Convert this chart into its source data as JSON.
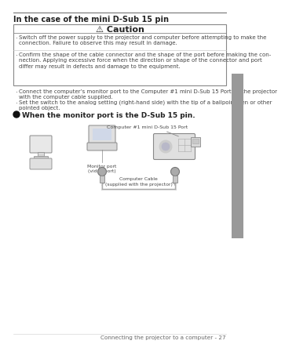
{
  "page_bg": "#ffffff",
  "title": "In the case of the mini D-Sub 15 pin",
  "caution_title": "⚠ Caution",
  "caution_item1": "Switch off the power supply to the projector and computer before attempting to make the\nconnection. Failure to observe this may result in damage.",
  "caution_item2": "Confirm the shape of the cable connector and the shape of the port before making the con-\nnection. Applying excessive force when the direction or shape of the connector and port\ndiffer may result in defects and damage to the equipment.",
  "bullet1_line1": "Connect the computer’s monitor port to the Computer #1 mini D-Sub 15 Port on the projector",
  "bullet1_line2": "with the computer cable supplied.",
  "bullet2_line1": "Set the switch to the analog setting (right-hand side) with the tip of a ballpoint pen or other",
  "bullet2_line2": "pointed object.",
  "bold_bullet": "When the monitor port is the D-Sub 15 pin.",
  "label_port": "Computer #1 mini D-Sub 15 Port",
  "label_monitor": "Monitor port\n(video port)",
  "label_cable": "Computer Cable\n(supplied with the projector)",
  "footer": "Connecting the projector to a computer - 27",
  "sidebar_color": "#999999",
  "box_edge": "#888888",
  "text_dark": "#222222",
  "text_mid": "#444444"
}
